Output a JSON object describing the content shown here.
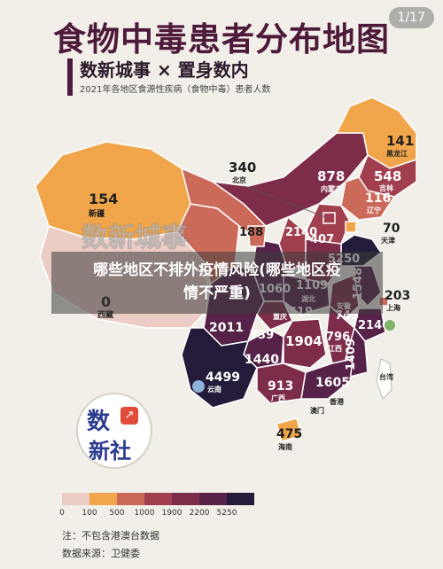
{
  "header": {
    "title": "食物中毒患者分布地图",
    "page_counter": "1/17",
    "subtitle": "数新城事 × 置身数内",
    "caption": "2021年各地区食源性疾病（食物中毒）患者人数"
  },
  "watermark": "数新城事",
  "banner": {
    "line1": "哪些地区不排外疫情风险(哪些地区疫",
    "line2": "情不严重)"
  },
  "logo": {
    "line1": "数",
    "line2": "新社",
    "icon": "trend-chart-icon"
  },
  "colors": {
    "bin0": "#eccdc6",
    "bin1": "#f0a54a",
    "bin2": "#cc6a5a",
    "bin3": "#a13f4e",
    "bin4": "#7d2c49",
    "bin5": "#562248",
    "bin6": "#241a39"
  },
  "map_data": {
    "regions": [
      {
        "id": "xinjiang",
        "name": "新疆",
        "value": "154"
      },
      {
        "id": "xizang",
        "name": "西藏",
        "value": "0"
      },
      {
        "id": "qinghai",
        "name": "",
        "value": ""
      },
      {
        "id": "gansu",
        "name": "",
        "value": ""
      },
      {
        "id": "neimenggu",
        "name": "内蒙古",
        "value": "878"
      },
      {
        "id": "heilongjiang",
        "name": "黑龙江",
        "value": "141"
      },
      {
        "id": "jilin",
        "name": "吉林",
        "value": "548"
      },
      {
        "id": "liaoning",
        "name": "辽宁",
        "value": "116"
      },
      {
        "id": "beijing",
        "name": "北京",
        "value": "340"
      },
      {
        "id": "tianjin",
        "name": "天津",
        "value": "70"
      },
      {
        "id": "hebei",
        "name": "",
        "value": "407"
      },
      {
        "id": "shandong",
        "name": "",
        "value": "5250"
      },
      {
        "id": "jiangsu",
        "name": "",
        "value": "1548"
      },
      {
        "id": "shanghai",
        "name": "上海",
        "value": "203"
      },
      {
        "id": "zhejiang",
        "name": "",
        "value": "2140"
      },
      {
        "id": "anhui",
        "name": "安徽",
        "value": "745"
      },
      {
        "id": "henan",
        "name": "",
        "value": "529"
      },
      {
        "id": "hubei",
        "name": "湖北",
        "value": "1109"
      },
      {
        "id": "shaanxi",
        "name": "",
        "value": "1060"
      },
      {
        "id": "ningxia",
        "name": "",
        "value": "188"
      },
      {
        "id": "chongqing",
        "name": "重庆",
        "value": "519"
      },
      {
        "id": "sichuan",
        "name": "",
        "value": "2011"
      },
      {
        "id": "guizhou",
        "name": "",
        "value": "1440"
      },
      {
        "id": "hunan",
        "name": "",
        "value": "739"
      },
      {
        "id": "jiangxi",
        "name": "江西",
        "value": "796"
      },
      {
        "id": "fujian",
        "name": "",
        "value": "1409"
      },
      {
        "id": "guangxi",
        "name": "广西",
        "value": "913"
      },
      {
        "id": "guangdong",
        "name": "",
        "value": "1605"
      },
      {
        "id": "yunnan",
        "name": "云南",
        "value": "4499"
      },
      {
        "id": "hainan",
        "name": "海南",
        "value": "475"
      },
      {
        "id": "hunan2",
        "name": "",
        "value": "1904"
      },
      {
        "id": "xianggang",
        "name": "香港",
        "value": ""
      },
      {
        "id": "aomen",
        "name": "澳门",
        "value": ""
      },
      {
        "id": "taiwan",
        "name": "台湾",
        "value": ""
      }
    ]
  },
  "legend": {
    "ticks": [
      "0",
      "100",
      "500",
      "1000",
      "1900",
      "2200",
      "5250"
    ]
  },
  "footer": {
    "note": "注：不包含港澳台数据",
    "source": "数据来源：卫健委"
  }
}
